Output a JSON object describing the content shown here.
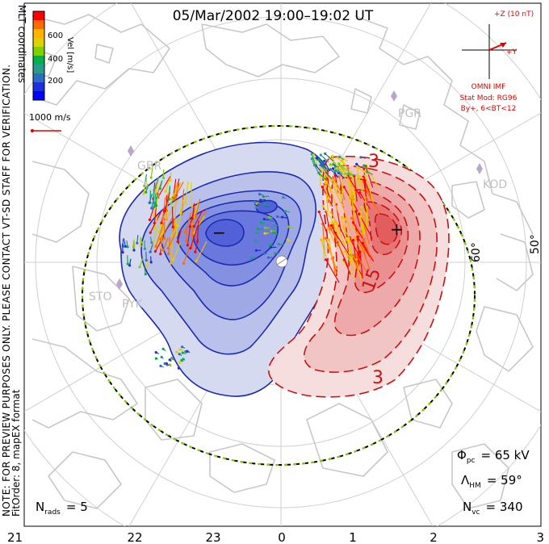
{
  "title": "05/Mar/2002 19:00–19:02 UT",
  "side_note": {
    "line1": "NOTE: FOR PREVIEW PURPOSES ONLY. PLEASE CONTACT VT-SD STAFF FOR VERIFICATION.",
    "line2": "FitOrder: 8, mapEX format"
  },
  "coords_label": "MLT coordinates",
  "colorbar": {
    "label": "Vel [m/s]",
    "ticks": [
      "600",
      "400",
      "200"
    ],
    "colors": [
      "#ff0000",
      "#ff6a00",
      "#ffb300",
      "#e0d000",
      "#7fd000",
      "#00b050",
      "#2a9a8a",
      "#2e6cc0",
      "#1c2fd8",
      "#0000ff"
    ]
  },
  "vector_scale": "1000 m/s",
  "imf": {
    "z_label": "+Z (10 nT)",
    "y_label": "+Y",
    "source": "OMNI IMF",
    "model": "Stat Mod: RG96",
    "condition": "By+, 6<BT<12",
    "color": "#e00000"
  },
  "stations": [
    "PGR",
    "KOD",
    "GBR",
    "STO",
    "PYK"
  ],
  "latitude_labels": [
    "60°",
    "50°"
  ],
  "contour_labels": [
    "3",
    "15",
    "3"
  ],
  "extrema": {
    "min": "−",
    "max": "+"
  },
  "stats": {
    "phi_symbol": "Φ",
    "phi_sub": "pc",
    "phi_value": "= 65 kV",
    "lambda_symbol": "Λ",
    "lambda_sub": "HM",
    "lambda_value": "= 59°",
    "nvc_symbol": "N",
    "nvc_sub": "vc",
    "nvc_value": "= 340",
    "nrads_symbol": "N",
    "nrads_sub": "rads",
    "nrads_value": "= 5"
  },
  "mlt_labels": [
    "21",
    "22",
    "23",
    "0",
    "1",
    "2",
    "3"
  ],
  "colors": {
    "negative_cell": "#2a3bd4",
    "positive_cell": "#e05050",
    "boundary": "#000000",
    "coast": "#c8c8c8"
  }
}
